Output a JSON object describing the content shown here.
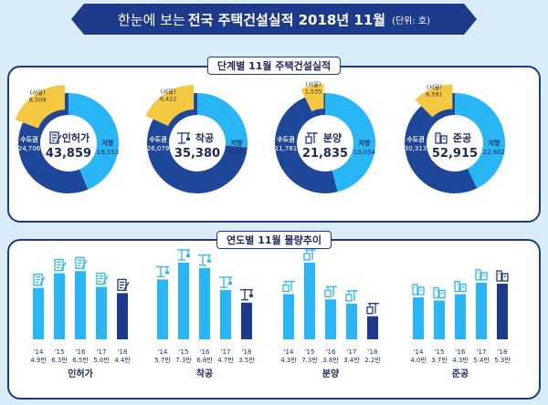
{
  "header": {
    "prefix": "한눈에 보는",
    "title": "전국 주택건설실적 2018년 11월",
    "unit": "(단위: 호)"
  },
  "section1": {
    "title": "단계별 11월 주택건설실적"
  },
  "section2": {
    "title": "연도별 11월 물량추이"
  },
  "colors": {
    "capital": "#1e4699",
    "local": "#29b6f6",
    "seoul": "#f5c842",
    "bar_past": "#29b6f6",
    "bar_current": "#1e3a8a",
    "navy": "#1e3a8a"
  },
  "chart_data": [
    {
      "type": "pie",
      "title": "단계별 11월 주택건설실적",
      "donuts": [
        {
          "label": "인허가",
          "total": "43,859",
          "icon": "permit-icon",
          "slices": [
            {
              "name": "수도권",
              "value": 24706,
              "display": "24,706"
            },
            {
              "name": "지방",
              "value": 19153,
              "display": "19,153"
            }
          ],
          "seoul": {
            "name": "(서울)",
            "value": 8509,
            "display": "8,509"
          }
        },
        {
          "label": "착공",
          "total": "35,380",
          "icon": "crane-icon",
          "slices": [
            {
              "name": "수도권",
              "value": 26079,
              "display": "26,079"
            },
            {
              "name": "지방",
              "value": 9301,
              "display": "9,301"
            }
          ],
          "seoul": {
            "name": "(서울)",
            "value": 6422,
            "display": "6,422"
          }
        },
        {
          "label": "분양",
          "total": "21,835",
          "icon": "building-crane-icon",
          "slices": [
            {
              "name": "수도권",
              "value": 11781,
              "display": "11,781"
            },
            {
              "name": "지방",
              "value": 10054,
              "display": "10,054"
            }
          ],
          "seoul": {
            "name": "(서울)",
            "value": 1535,
            "display": "1,535"
          }
        },
        {
          "label": "준공",
          "total": "52,915",
          "icon": "buildings-icon",
          "slices": [
            {
              "name": "수도권",
              "value": 30313,
              "display": "30,313"
            },
            {
              "name": "지방",
              "value": 22602,
              "display": "22,602"
            }
          ],
          "seoul": {
            "name": "(서울)",
            "value": 6591,
            "display": "6,591"
          }
        }
      ]
    },
    {
      "type": "bar",
      "title": "연도별 11월 물량추이",
      "groups": [
        {
          "name": "인허가",
          "icon": "permit-icon",
          "categories": [
            "'14",
            "'15",
            "'16",
            "'17",
            "'18"
          ],
          "values": [
            4.9,
            6.3,
            6.5,
            5.0,
            4.4
          ],
          "labels": [
            "4.9만",
            "6.3만",
            "6.5만",
            "5.0만",
            "4.4만"
          ]
        },
        {
          "name": "착공",
          "icon": "crane-icon",
          "categories": [
            "'14",
            "'15",
            "'16",
            "'17",
            "'18"
          ],
          "values": [
            5.7,
            7.3,
            6.8,
            4.7,
            3.5
          ],
          "labels": [
            "5.7만",
            "7.3만",
            "6.8만",
            "4.7만",
            "3.5만"
          ]
        },
        {
          "name": "분양",
          "icon": "building-crane-icon",
          "categories": [
            "'14",
            "'15",
            "'16",
            "'17",
            "'18"
          ],
          "values": [
            4.3,
            7.3,
            3.8,
            3.4,
            2.2
          ],
          "labels": [
            "4.3만",
            "7.3만",
            "3.8만",
            "3.4만",
            "2.2만"
          ]
        },
        {
          "name": "준공",
          "icon": "buildings-icon",
          "categories": [
            "'14",
            "'15",
            "'16",
            "'17",
            "'18"
          ],
          "values": [
            4.0,
            3.7,
            4.3,
            5.4,
            5.3
          ],
          "labels": [
            "4.0만",
            "3.7만",
            "4.3만",
            "5.4만",
            "5.3만"
          ]
        }
      ]
    }
  ]
}
